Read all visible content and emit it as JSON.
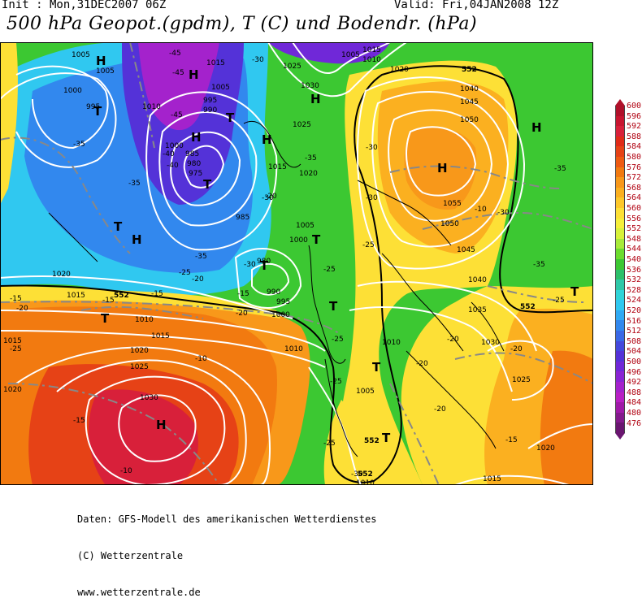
{
  "header": {
    "init": "Init : Mon,31DEC2007 06Z",
    "valid": "Valid: Fri,04JAN2008 12Z",
    "title": "500 hPa Geopot.(gpdm), T (C) und Bodendr. (hPa)"
  },
  "legend": {
    "values": [
      "600",
      "596",
      "592",
      "588",
      "584",
      "580",
      "576",
      "572",
      "568",
      "564",
      "560",
      "556",
      "552",
      "548",
      "544",
      "540",
      "536",
      "532",
      "528",
      "524",
      "520",
      "516",
      "512",
      "508",
      "504",
      "500",
      "496",
      "492",
      "488",
      "484",
      "480",
      "476"
    ],
    "colors": [
      "#b0102a",
      "#c81530",
      "#d8203a",
      "#e02a18",
      "#e64216",
      "#ee5a12",
      "#f27a10",
      "#f8981a",
      "#fbb020",
      "#fdc82a",
      "#fde036",
      "#f6ef3a",
      "#d8f23a",
      "#a8ea3a",
      "#6cdc2e",
      "#3cc832",
      "#2cc06a",
      "#2ec8a8",
      "#30d4d8",
      "#30c8f0",
      "#30aaf4",
      "#3288ee",
      "#3a68e6",
      "#4448dc",
      "#5432d8",
      "#7028d8",
      "#8a24d4",
      "#a422cc",
      "#b820c4",
      "#a01aa8",
      "#841a8c",
      "#6a1670"
    ]
  },
  "map": {
    "pressure_labels": [
      "1005",
      "1005",
      "1000",
      "995",
      "1010",
      "1000",
      "1015",
      "1005",
      "1025",
      "1030",
      "985",
      "980",
      "975",
      "995",
      "990",
      "1015",
      "1020",
      "1025",
      "985",
      "1000",
      "980",
      "990",
      "995",
      "1000",
      "1005",
      "1020",
      "1015",
      "1010",
      "1015",
      "1020",
      "1025",
      "1030",
      "1040",
      "1045",
      "1050",
      "1055",
      "1050",
      "1045",
      "1040",
      "1035",
      "1030",
      "1025",
      "1020",
      "1015",
      "1010",
      "1005",
      "1010",
      "1020",
      "1010",
      "1015",
      "1005",
      "1010",
      "1015",
      "1020"
    ],
    "temp_labels": [
      "-45",
      "-45",
      "-40",
      "-45",
      "-35",
      "-40",
      "-30",
      "-35",
      "-35",
      "-30",
      "-30",
      "-20",
      "-30",
      "-35",
      "-25",
      "-20",
      "-15",
      "-10",
      "-15",
      "-10",
      "-20",
      "-25",
      "-25",
      "-30",
      "-30",
      "-35",
      "-35",
      "-25",
      "-25",
      "-20",
      "-20",
      "-25",
      "-15",
      "-10",
      "-15",
      "-20",
      "-15",
      "-20",
      "-25",
      "-30",
      "-25",
      "-20",
      "-15"
    ],
    "height_labels": [
      "552",
      "552",
      "552",
      "552",
      "552"
    ],
    "pressure_centers": [
      "H",
      "H",
      "T",
      "H",
      "H",
      "T",
      "T",
      "T",
      "H",
      "H",
      "T",
      "H",
      "T",
      "T",
      "T",
      "T",
      "T",
      "H",
      "T",
      "H"
    ]
  },
  "footer": {
    "line1": "Daten: GFS-Modell des amerikanischen Wetterdienstes",
    "line2": "(C) Wetterzentrale",
    "line3": "www.wetterzentrale.de"
  }
}
